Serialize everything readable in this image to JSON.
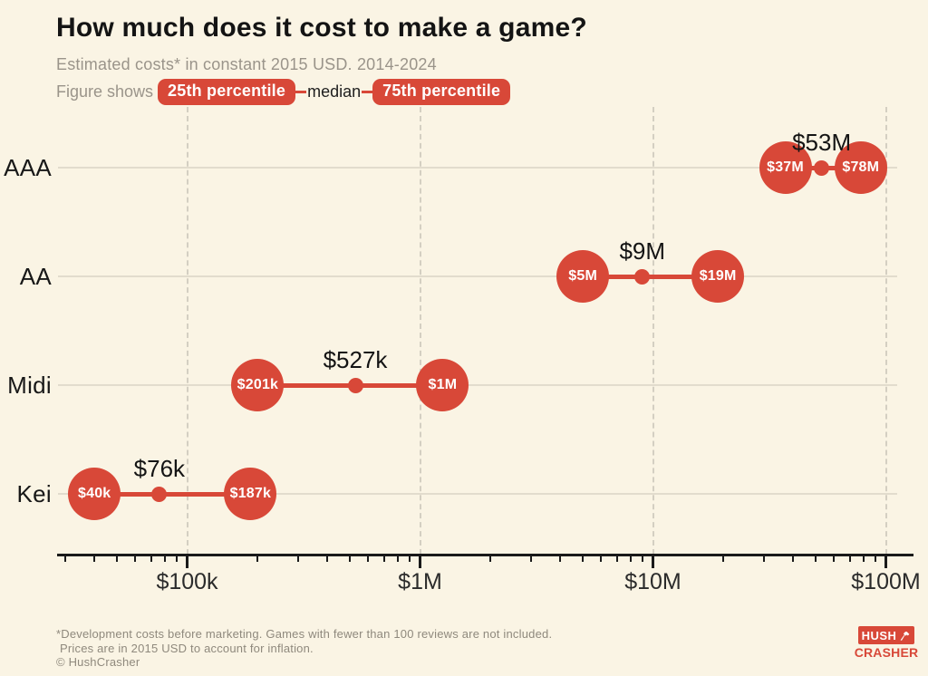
{
  "header": {
    "title": "How much does it cost to make a game?",
    "subtitle": "Estimated costs* in constant 2015 USD. 2014-2024",
    "legend": {
      "prefix": "Figure shows",
      "p25": "25th percentile",
      "median": "median",
      "p75": "75th percentile"
    }
  },
  "chart_data": {
    "type": "dumbbell",
    "x_scale": "log",
    "x_axis": {
      "min": 27000,
      "max": 136000000,
      "ticks": [
        {
          "value": 100000,
          "label": "$100k"
        },
        {
          "value": 1000000,
          "label": "$1M"
        },
        {
          "value": 10000000,
          "label": "$10M"
        },
        {
          "value": 100000000,
          "label": "$100M"
        }
      ]
    },
    "rows": [
      {
        "category": "AAA",
        "p25": {
          "value": 37000000,
          "label": "$37M"
        },
        "median": {
          "value": 53000000,
          "label": "$53M"
        },
        "p75": {
          "value": 78000000,
          "label": "$78M"
        }
      },
      {
        "category": "AA",
        "p25": {
          "value": 5000000,
          "label": "$5M"
        },
        "median": {
          "value": 9000000,
          "label": "$9M"
        },
        "p75": {
          "value": 19000000,
          "label": "$19M"
        }
      },
      {
        "category": "Midi",
        "p25": {
          "value": 201000,
          "label": "$201k"
        },
        "median": {
          "value": 527000,
          "label": "$527k"
        },
        "p75": {
          "value": 1250000,
          "label": "$1M"
        }
      },
      {
        "category": "Kei",
        "p25": {
          "value": 40000,
          "label": "$40k"
        },
        "median": {
          "value": 76000,
          "label": "$76k"
        },
        "p75": {
          "value": 187000,
          "label": "$187k"
        }
      }
    ]
  },
  "footnote": {
    "line1": "*Development costs before marketing. Games with fewer than 100 reviews are not included.",
    "line2": "Prices are in 2015 USD to account for inflation.",
    "credit": "© HushCrasher"
  },
  "logo": {
    "top": "HUSH",
    "bottom": "CRASHER"
  },
  "colors": {
    "accent": "#d84838",
    "background": "#faf4e4"
  }
}
